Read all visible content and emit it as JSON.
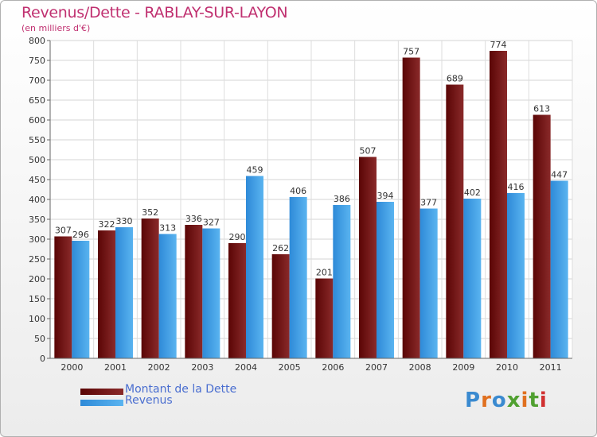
{
  "chart_data": {
    "type": "bar",
    "title": "Revenus/Dette - RABLAY-SUR-LAYON",
    "subtitle": "(en milliers d'€)",
    "categories": [
      "2000",
      "2001",
      "2002",
      "2003",
      "2004",
      "2005",
      "2006",
      "2007",
      "2008",
      "2009",
      "2010",
      "2011"
    ],
    "series": [
      {
        "name": "Montant de la Dette",
        "color": "#7a1010",
        "values": [
          307,
          322,
          352,
          336,
          290,
          262,
          201,
          507,
          757,
          689,
          774,
          613
        ]
      },
      {
        "name": "Revenus",
        "color": "#3a9ae0",
        "values": [
          296,
          330,
          313,
          327,
          459,
          406,
          386,
          394,
          377,
          402,
          416,
          447
        ]
      }
    ],
    "ylim": [
      0,
      800
    ],
    "yticks": [
      0,
      50,
      100,
      150,
      200,
      250,
      300,
      350,
      400,
      450,
      500,
      550,
      600,
      650,
      700,
      750,
      800
    ],
    "grid": true,
    "legend_position": "bottom-left"
  },
  "logo": {
    "text": "Proxiti",
    "letters": [
      {
        "ch": "P",
        "color": "#3a8ad0"
      },
      {
        "ch": "r",
        "color": "#e07020"
      },
      {
        "ch": "o",
        "color": "#3a8ad0"
      },
      {
        "ch": "x",
        "color": "#50a030"
      },
      {
        "ch": "i",
        "color": "#e07020"
      },
      {
        "ch": "t",
        "color": "#50a030"
      },
      {
        "ch": "i",
        "color": "#d03030"
      }
    ]
  }
}
